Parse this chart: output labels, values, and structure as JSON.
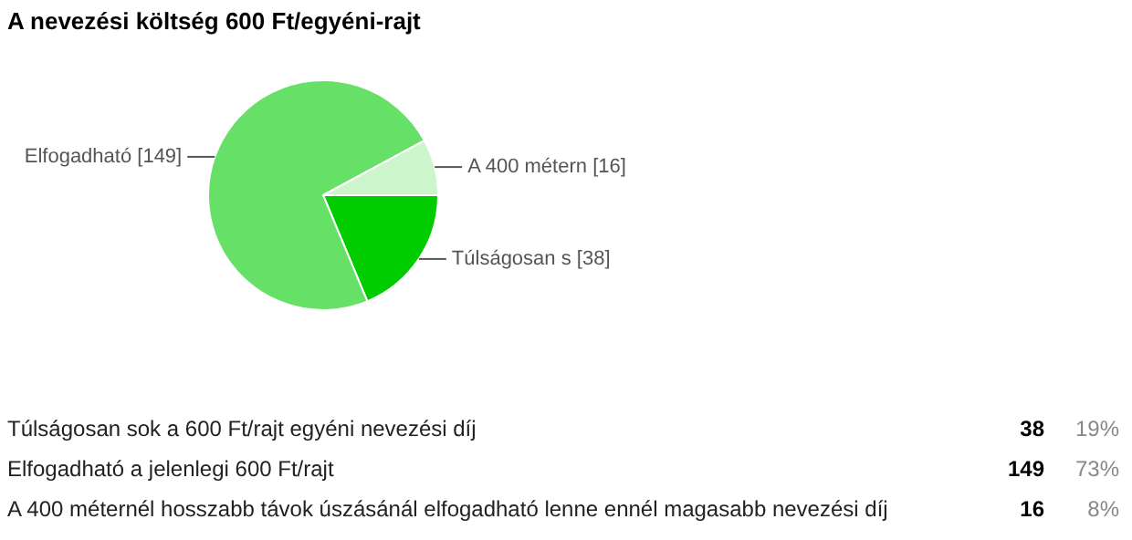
{
  "chart_data": [
    {
      "type": "pie",
      "title": "A nevezési költség 600 Ft/egyéni-rajt",
      "categories": [
        null,
        null,
        null
      ],
      "values": [
        38,
        149,
        16
      ],
      "colors": [
        "#00cc00",
        "#66e066",
        "#ccf5cc"
      ],
      "value_labels": [
        "Túlságosan s [38]",
        "Elfogadható [149]",
        "A 400 métern [16]"
      ]
    },
    {
      "type": "other",
      "annotations": [
        "Túlságosan sok a 600 Ft/rajt egyéni nevezési díj",
        "38",
        "19%",
        "Elfogadható a jelenlegi 600 Ft/rajt",
        "149",
        "73%",
        "A 400 méternél  hosszabb távok úszásánál elfogadható lenne ennél magasabb nevezési díj",
        "16",
        "8%"
      ]
    }
  ]
}
